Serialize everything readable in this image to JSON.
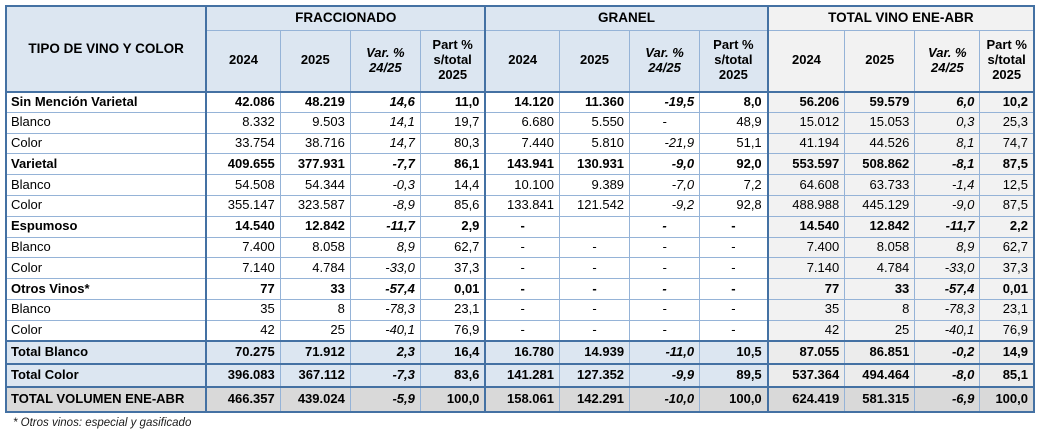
{
  "colors": {
    "header_blue": "#DCE6F1",
    "header_gray": "#F2F2F2",
    "border_blue": "#4471A3",
    "grid_blue": "#95B3D7",
    "total_row_blue": "#DCE6F1",
    "total_section_gray": "#ECECEC",
    "grand_total_gray": "#D9D9D9"
  },
  "table": {
    "corner_header": "TIPO DE VINO Y COLOR",
    "sections": [
      {
        "label": "FRACCIONADO"
      },
      {
        "label": "GRANEL"
      },
      {
        "label": "TOTAL VINO ENE-ABR"
      }
    ],
    "sub_headers": [
      {
        "lines": [
          "2024"
        ],
        "italic": false
      },
      {
        "lines": [
          "2025"
        ],
        "italic": false
      },
      {
        "lines": [
          "Var. %",
          "24/25"
        ],
        "italic": true
      },
      {
        "lines": [
          "Part %",
          "s/total",
          "2025"
        ],
        "italic": false
      }
    ],
    "rows": [
      {
        "label": "Sin Mención Varietal",
        "style": "bold",
        "frac": [
          "42.086",
          "48.219",
          "14,6",
          "11,0"
        ],
        "granel": [
          "14.120",
          "11.360",
          "-19,5",
          "8,0"
        ],
        "total": [
          "56.206",
          "59.579",
          "6,0",
          "10,2"
        ]
      },
      {
        "label": "Blanco",
        "style": "normal",
        "frac": [
          "8.332",
          "9.503",
          "14,1",
          "19,7"
        ],
        "granel": [
          "6.680",
          "5.550",
          "-",
          "48,9"
        ],
        "total": [
          "15.012",
          "15.053",
          "0,3",
          "25,3"
        ]
      },
      {
        "label": "Color",
        "style": "normal",
        "frac": [
          "33.754",
          "38.716",
          "14,7",
          "80,3"
        ],
        "granel": [
          "7.440",
          "5.810",
          "-21,9",
          "51,1"
        ],
        "total": [
          "41.194",
          "44.526",
          "8,1",
          "74,7"
        ]
      },
      {
        "label": "Varietal",
        "style": "bold",
        "frac": [
          "409.655",
          "377.931",
          "-7,7",
          "86,1"
        ],
        "granel": [
          "143.941",
          "130.931",
          "-9,0",
          "92,0"
        ],
        "total": [
          "553.597",
          "508.862",
          "-8,1",
          "87,5"
        ]
      },
      {
        "label": "Blanco",
        "style": "normal",
        "frac": [
          "54.508",
          "54.344",
          "-0,3",
          "14,4"
        ],
        "granel": [
          "10.100",
          "9.389",
          "-7,0",
          "7,2"
        ],
        "total": [
          "64.608",
          "63.733",
          "-1,4",
          "12,5"
        ]
      },
      {
        "label": "Color",
        "style": "normal",
        "frac": [
          "355.147",
          "323.587",
          "-8,9",
          "85,6"
        ],
        "granel": [
          "133.841",
          "121.542",
          "-9,2",
          "92,8"
        ],
        "total": [
          "488.988",
          "445.129",
          "-9,0",
          "87,5"
        ]
      },
      {
        "label": "Espumoso",
        "style": "bold",
        "frac": [
          "14.540",
          "12.842",
          "-11,7",
          "2,9"
        ],
        "granel": [
          "-",
          "",
          "-",
          "-"
        ],
        "total": [
          "14.540",
          "12.842",
          "-11,7",
          "2,2"
        ]
      },
      {
        "label": "Blanco",
        "style": "normal",
        "frac": [
          "7.400",
          "8.058",
          "8,9",
          "62,7"
        ],
        "granel": [
          "-",
          "-",
          "-",
          "-"
        ],
        "total": [
          "7.400",
          "8.058",
          "8,9",
          "62,7"
        ]
      },
      {
        "label": "Color",
        "style": "normal",
        "frac": [
          "7.140",
          "4.784",
          "-33,0",
          "37,3"
        ],
        "granel": [
          "-",
          "-",
          "-",
          "-"
        ],
        "total": [
          "7.140",
          "4.784",
          "-33,0",
          "37,3"
        ]
      },
      {
        "label": "Otros Vinos*",
        "style": "bold",
        "frac": [
          "77",
          "33",
          "-57,4",
          "0,01"
        ],
        "granel": [
          "-",
          "-",
          "-",
          "-"
        ],
        "total": [
          "77",
          "33",
          "-57,4",
          "0,01"
        ]
      },
      {
        "label": "Blanco",
        "style": "normal",
        "frac": [
          "35",
          "8",
          "-78,3",
          "23,1"
        ],
        "granel": [
          "-",
          "-",
          "-",
          "-"
        ],
        "total": [
          "35",
          "8",
          "-78,3",
          "23,1"
        ]
      },
      {
        "label": "Color",
        "style": "normal",
        "frac": [
          "42",
          "25",
          "-40,1",
          "76,9"
        ],
        "granel": [
          "-",
          "-",
          "-",
          "-"
        ],
        "total": [
          "42",
          "25",
          "-40,1",
          "76,9"
        ]
      }
    ],
    "total_rows": [
      {
        "label": "Total Blanco",
        "style": "t-blue",
        "frac": [
          "70.275",
          "71.912",
          "2,3",
          "16,4"
        ],
        "granel": [
          "16.780",
          "14.939",
          "-11,0",
          "10,5"
        ],
        "total": [
          "87.055",
          "86.851",
          "-0,2",
          "14,9"
        ]
      },
      {
        "label": "Total Color",
        "style": "t-blue",
        "frac": [
          "396.083",
          "367.112",
          "-7,3",
          "83,6"
        ],
        "granel": [
          "141.281",
          "127.352",
          "-9,9",
          "89,5"
        ],
        "total": [
          "537.364",
          "494.464",
          "-8,0",
          "85,1"
        ]
      },
      {
        "label": "TOTAL VOLUMEN ENE-ABR",
        "style": "t-gray",
        "frac": [
          "466.357",
          "439.024",
          "-5,9",
          "100,0"
        ],
        "granel": [
          "158.061",
          "142.291",
          "-10,0",
          "100,0"
        ],
        "total": [
          "624.419",
          "581.315",
          "-6,9",
          "100,0"
        ]
      }
    ]
  },
  "footnote": "* Otros vinos: especial y gasificado"
}
